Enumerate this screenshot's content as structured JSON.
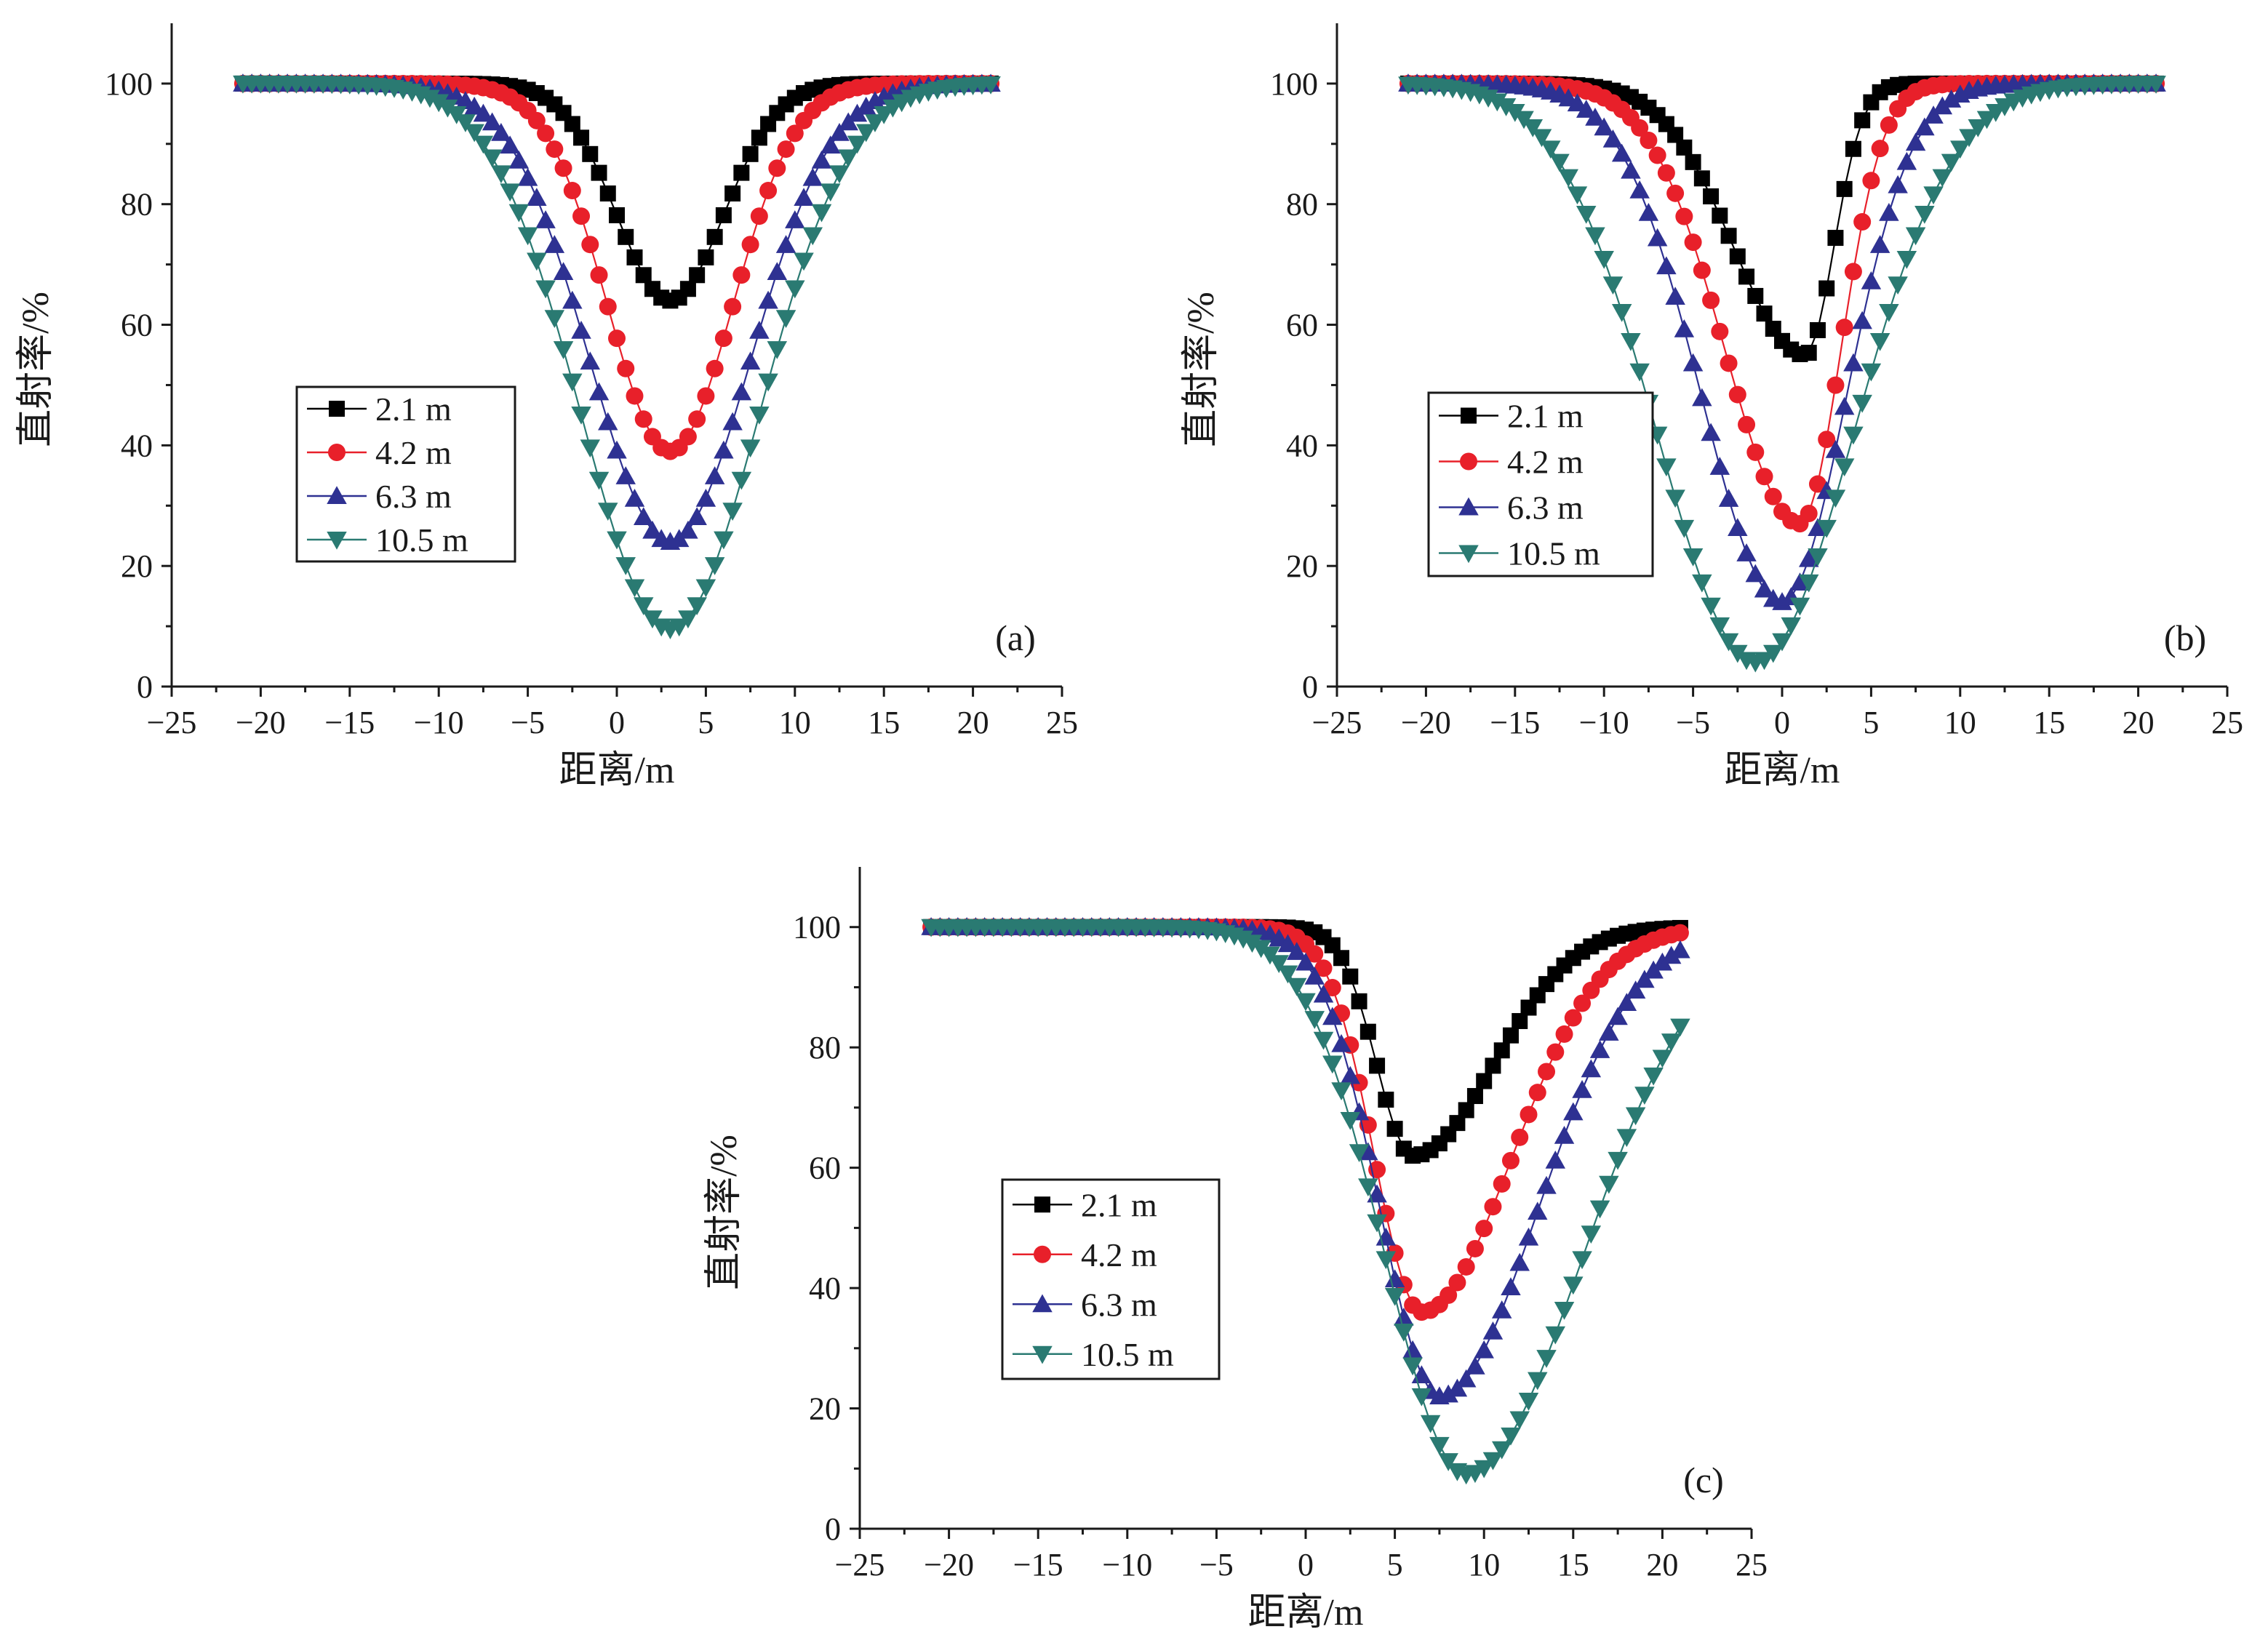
{
  "chart_data": [
    {
      "type": "line",
      "panel_label": "(a)",
      "xlabel": "距离/m",
      "ylabel": "直射率/%",
      "xlim": [
        -25,
        25
      ],
      "ylim": [
        0,
        110
      ],
      "xticks": [
        -25,
        -20,
        -15,
        -10,
        -5,
        0,
        5,
        10,
        15,
        20,
        25
      ],
      "xtick_labels": [
        "−25",
        "−20",
        "−15",
        "−10",
        "−5",
        "0",
        "5",
        "10",
        "15",
        "20",
        "25"
      ],
      "yticks": [
        0,
        20,
        40,
        60,
        80,
        100
      ],
      "ytick_labels": [
        "0",
        "20",
        "40",
        "60",
        "80",
        "100"
      ],
      "legend_position": "center-left",
      "x_range": [
        -21,
        21
      ],
      "series": [
        {
          "name": "2.1 m",
          "color": "#000000",
          "marker": "square",
          "center": 3.0,
          "min": 64,
          "width_left": 3.0,
          "width_right": 3.0
        },
        {
          "name": "4.2 m",
          "color": "#e8202a",
          "marker": "circle",
          "center": 3.0,
          "min": 39,
          "width_left": 3.5,
          "width_right": 3.5
        },
        {
          "name": "6.3 m",
          "color": "#2e3192",
          "marker": "triangle-up",
          "center": 3.0,
          "min": 24,
          "width_left": 4.5,
          "width_right": 4.5
        },
        {
          "name": "10.5 m",
          "color": "#2a7a72",
          "marker": "triangle-down",
          "center": 3.0,
          "min": 9.5,
          "width_left": 5.0,
          "width_right": 5.0
        }
      ]
    },
    {
      "type": "line",
      "panel_label": "(b)",
      "xlabel": "距离/m",
      "ylabel": "直射率/%",
      "xlim": [
        -25,
        25
      ],
      "ylim": [
        0,
        110
      ],
      "xticks": [
        -25,
        -20,
        -15,
        -10,
        -5,
        0,
        5,
        10,
        15,
        20,
        25
      ],
      "xtick_labels": [
        "−25",
        "−20",
        "−15",
        "−10",
        "−5",
        "0",
        "5",
        "10",
        "15",
        "20",
        "25"
      ],
      "yticks": [
        0,
        20,
        40,
        60,
        80,
        100
      ],
      "ytick_labels": [
        "0",
        "20",
        "40",
        "60",
        "80",
        "100"
      ],
      "legend_position": "center-left",
      "x_range": [
        -21,
        21
      ],
      "series": [
        {
          "name": "2.1 m",
          "color": "#000000",
          "marker": "square",
          "center": 1.3,
          "min": 55,
          "width_left": 4.0,
          "width_right": 1.6
        },
        {
          "name": "4.2 m",
          "color": "#e8202a",
          "marker": "circle",
          "center": 1.0,
          "min": 27,
          "width_left": 4.2,
          "width_right": 2.3
        },
        {
          "name": "6.3 m",
          "color": "#2e3192",
          "marker": "triangle-up",
          "center": 0.0,
          "min": 14,
          "width_left": 4.5,
          "width_right": 3.6
        },
        {
          "name": "10.5 m",
          "color": "#2a7a72",
          "marker": "triangle-down",
          "center": -1.5,
          "min": 4,
          "width_left": 5.5,
          "width_right": 5.5
        }
      ]
    },
    {
      "type": "line",
      "panel_label": "(c)",
      "xlabel": "距离/m",
      "ylabel": "直射率/%",
      "xlim": [
        -25,
        25
      ],
      "ylim": [
        0,
        110
      ],
      "xticks": [
        -25,
        -20,
        -15,
        -10,
        -5,
        0,
        5,
        10,
        15,
        20,
        25
      ],
      "xtick_labels": [
        "−25",
        "−20",
        "−15",
        "−10",
        "−5",
        "0",
        "5",
        "10",
        "15",
        "20",
        "25"
      ],
      "yticks": [
        0,
        20,
        40,
        60,
        80,
        100
      ],
      "ytick_labels": [
        "0",
        "20",
        "40",
        "60",
        "80",
        "100"
      ],
      "legend_position": "center-left",
      "x_range": [
        -21,
        21
      ],
      "series": [
        {
          "name": "2.1 m",
          "color": "#000000",
          "marker": "square",
          "center": 6.0,
          "min": 62,
          "width_left": 2.0,
          "width_right": 4.5
        },
        {
          "name": "4.2 m",
          "color": "#e8202a",
          "marker": "circle",
          "center": 6.5,
          "min": 36,
          "width_left": 2.6,
          "width_right": 5.0
        },
        {
          "name": "6.3 m",
          "color": "#2e3192",
          "marker": "triangle-up",
          "center": 7.5,
          "min": 22,
          "width_left": 3.3,
          "width_right": 5.5
        },
        {
          "name": "10.5 m",
          "color": "#2a7a72",
          "marker": "triangle-down",
          "center": 9.0,
          "min": 9,
          "width_left": 4.5,
          "width_right": 6.5
        }
      ]
    }
  ]
}
